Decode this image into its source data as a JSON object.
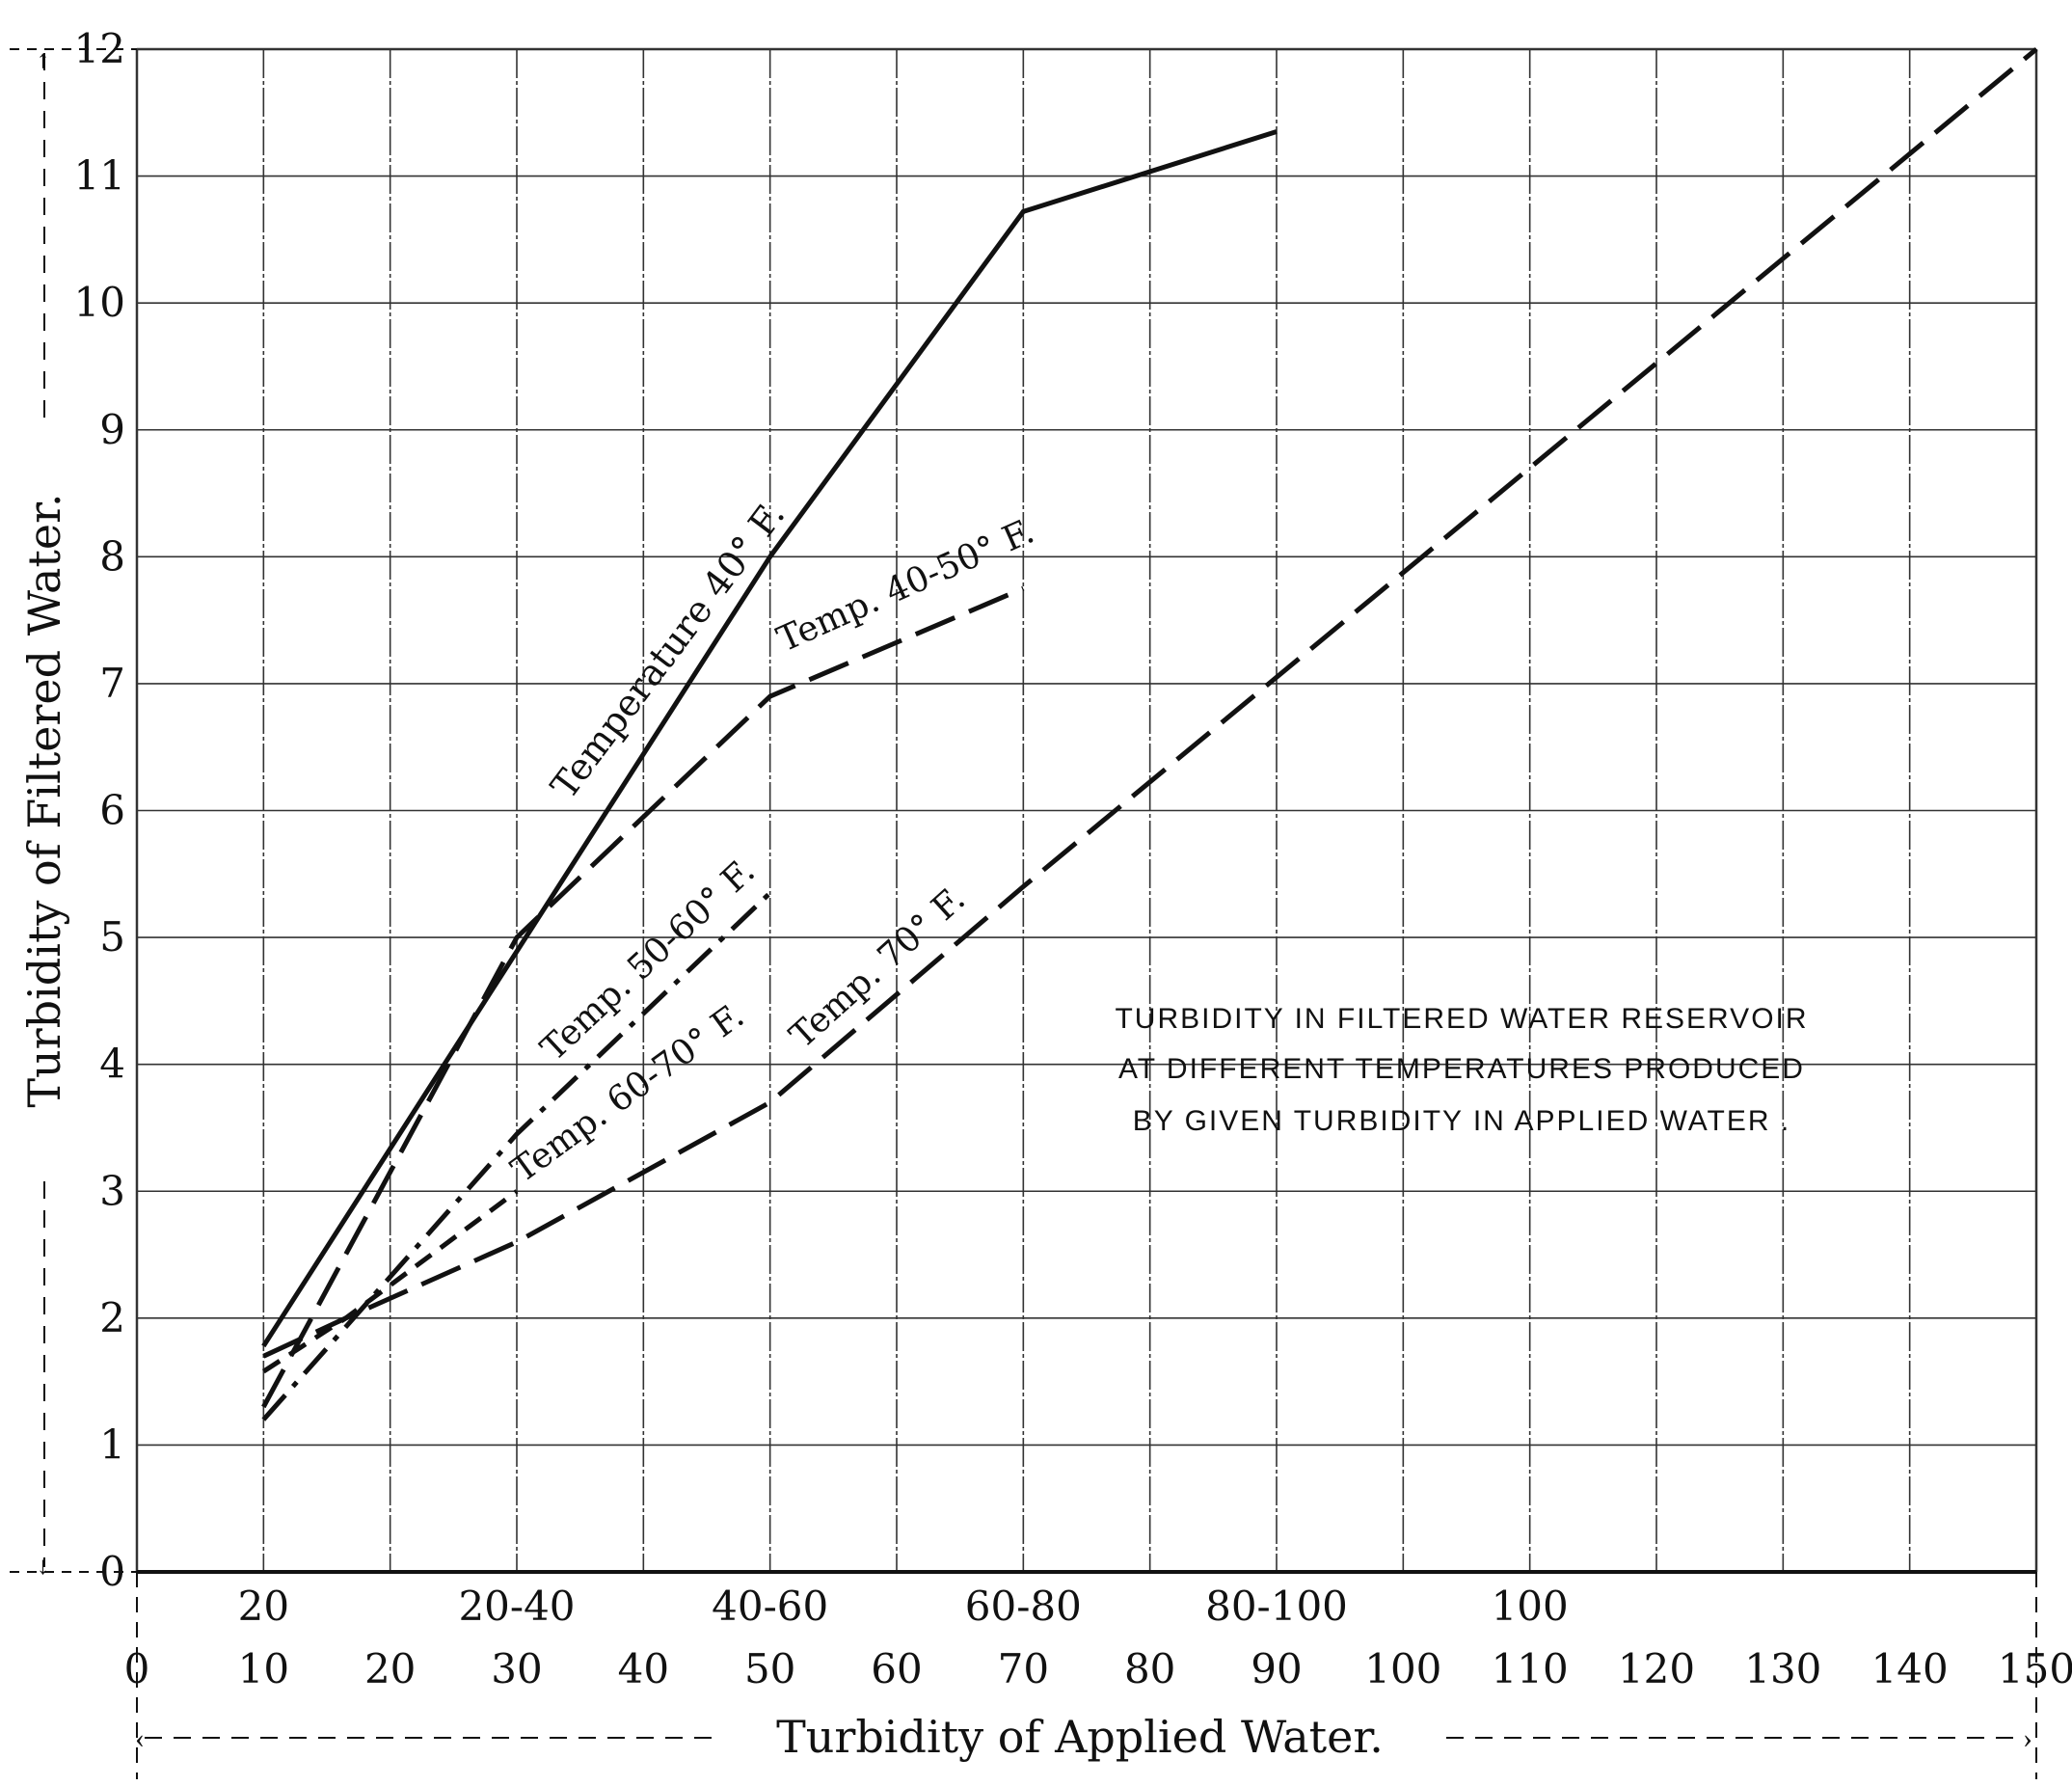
{
  "chart_data": {
    "type": "line",
    "title": "",
    "xlabel": "Turbidity of Applied Water.",
    "ylabel": "Turbidity of Filtered Water.",
    "xlim": [
      0,
      150
    ],
    "ylim": [
      0,
      12
    ],
    "grid": true,
    "x_ticks": [
      "0",
      "10",
      "20",
      "30",
      "40",
      "50",
      "60",
      "70",
      "80",
      "90",
      "100",
      "110",
      "120",
      "130",
      "140",
      "150"
    ],
    "y_ticks": [
      "0",
      "1",
      "2",
      "3",
      "4",
      "5",
      "6",
      "7",
      "8",
      "9",
      "10",
      "11",
      "12"
    ],
    "secondary_x_ticks": [
      {
        "x": 10,
        "label": "20"
      },
      {
        "x": 30,
        "label": "20-40"
      },
      {
        "x": 50,
        "label": "40-60"
      },
      {
        "x": 70,
        "label": "60-80"
      },
      {
        "x": 90,
        "label": "80-100"
      },
      {
        "x": 110,
        "label": "100"
      }
    ],
    "annotation": [
      "TURBIDITY IN FILTERED WATER RESERVOIR",
      "AT DIFFERENT TEMPERATURES PRODUCED",
      "BY GIVEN TURBIDITY IN APPLIED WATER ."
    ],
    "series": [
      {
        "name": "Temperature 40° F.",
        "style": "solid",
        "points": [
          [
            10,
            1.78
          ],
          [
            50,
            8.0
          ],
          [
            70,
            10.72
          ],
          [
            90,
            11.35
          ]
        ]
      },
      {
        "name": "Temp. 40-50° F.",
        "style": "long-dash",
        "points": [
          [
            10,
            1.3
          ],
          [
            30,
            5.0
          ],
          [
            50,
            6.9
          ],
          [
            70,
            7.75
          ]
        ]
      },
      {
        "name": "Temp. 50-60° F.",
        "style": "dash-dot",
        "points": [
          [
            10,
            1.2
          ],
          [
            30,
            3.45
          ],
          [
            50,
            5.35
          ]
        ]
      },
      {
        "name": "Temp. 60-70° F.",
        "style": "short-dash",
        "points": [
          [
            10,
            1.58
          ],
          [
            16.5,
            2.0
          ],
          [
            30,
            3.0
          ]
        ]
      },
      {
        "name": "Temp. 70° F.",
        "style": "long-dash",
        "points": [
          [
            10,
            1.7
          ],
          [
            16.5,
            2.0
          ],
          [
            30,
            2.6
          ],
          [
            50,
            3.7
          ],
          [
            70,
            5.4
          ],
          [
            150,
            12.0
          ]
        ]
      }
    ],
    "colors": {
      "ink": "#111111",
      "grid": "#333333",
      "background": "#ffffff"
    }
  }
}
